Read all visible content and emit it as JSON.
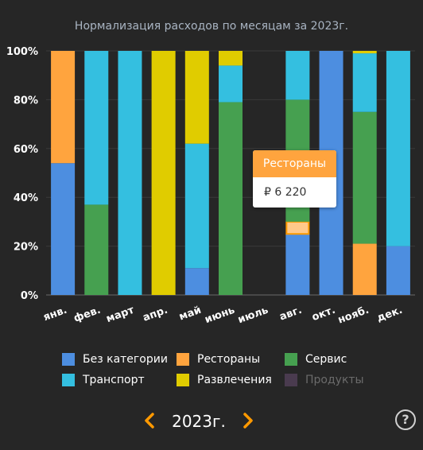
{
  "chart_data": {
    "type": "bar",
    "stacked": true,
    "title": "Нормализация расходов по месяцам за 2023г.",
    "categories": [
      "янв.",
      "фев.",
      "март",
      "апр.",
      "май",
      "июнь",
      "июль",
      "авг.",
      "окт.",
      "нояб.",
      "дек."
    ],
    "ylim": [
      0,
      100
    ],
    "yticks": [
      "0%",
      "20%",
      "40%",
      "60%",
      "80%",
      "100%"
    ],
    "series": [
      {
        "name": "Без категории",
        "color": "#4d8ee0",
        "values": [
          54,
          0,
          0,
          0,
          11,
          0,
          0,
          25,
          100,
          0,
          20
        ]
      },
      {
        "name": "Рестораны",
        "color": "#ffa43e",
        "values": [
          46,
          0,
          0,
          0,
          0,
          0,
          0,
          5,
          0,
          21,
          0
        ]
      },
      {
        "name": "Сервис",
        "color": "#46a050",
        "values": [
          0,
          37,
          0,
          0,
          0,
          79,
          0,
          50,
          0,
          54,
          0
        ]
      },
      {
        "name": "Транспорт",
        "color": "#34bfe0",
        "values": [
          0,
          63,
          100,
          0,
          51,
          15,
          0,
          20,
          0,
          24,
          80
        ]
      },
      {
        "name": "Развлечения",
        "color": "#e0cc00",
        "values": [
          0,
          0,
          0,
          100,
          38,
          6,
          0,
          0,
          0,
          1,
          0
        ]
      },
      {
        "name": "Продукты",
        "color": "#4a3b4f",
        "values": [
          0,
          0,
          0,
          0,
          0,
          0,
          0,
          0,
          0,
          0,
          0
        ],
        "disabled": true
      }
    ],
    "highlight": {
      "category_index": 7,
      "series": "Рестораны"
    },
    "tooltip": {
      "title": "Рестораны",
      "value": "₽ 6 220"
    }
  },
  "legend": [
    {
      "name": "Без категории",
      "color": "#4d8ee0"
    },
    {
      "name": "Рестораны",
      "color": "#ffa43e"
    },
    {
      "name": "Сервис",
      "color": "#46a050"
    },
    {
      "name": "Транспорт",
      "color": "#34bfe0"
    },
    {
      "name": "Развлечения",
      "color": "#e0cc00"
    },
    {
      "name": "Продукты",
      "color": "#4a3b4f",
      "disabled": true
    }
  ],
  "nav": {
    "year": "2023г.",
    "help": "?"
  },
  "colors": {
    "background": "#262626",
    "accent": "#ff9900",
    "title": "#a9b4c2"
  }
}
